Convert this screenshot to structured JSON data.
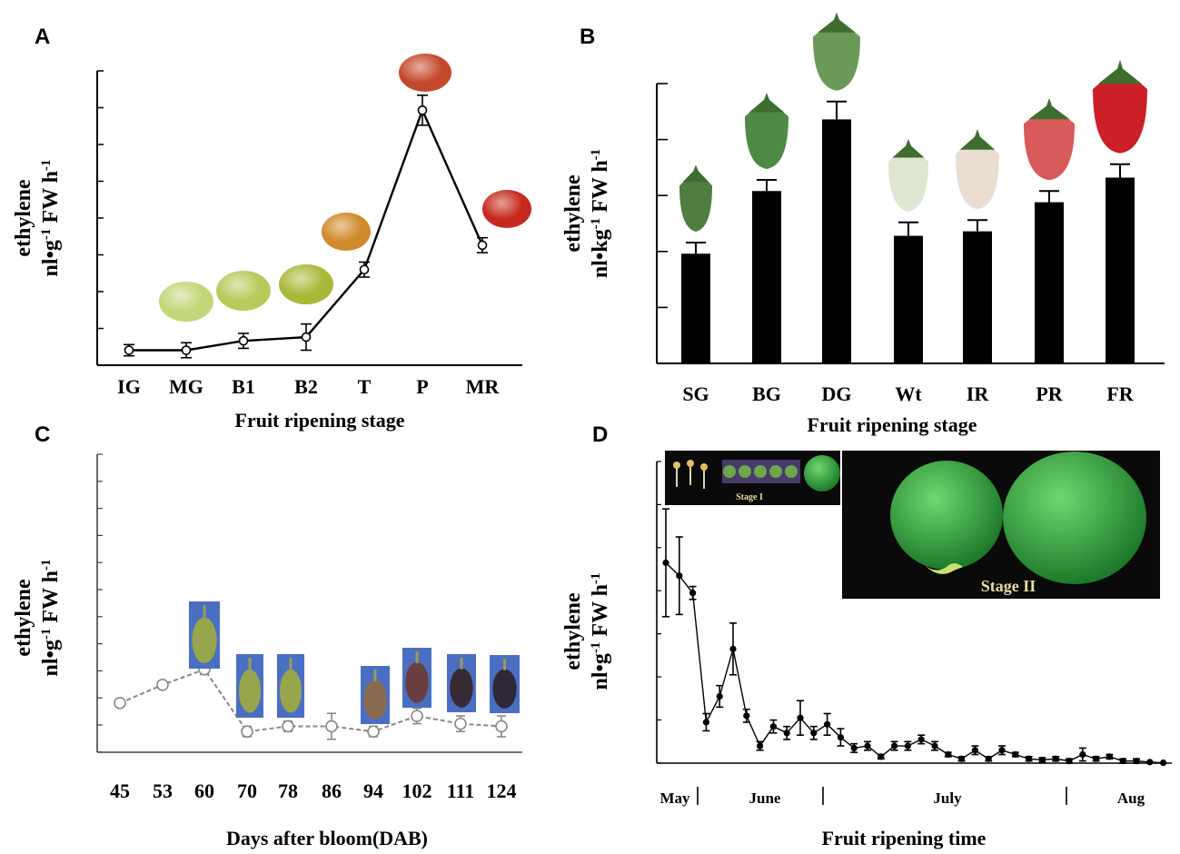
{
  "panels": {
    "A": {
      "letter": "A"
    },
    "B": {
      "letter": "B"
    },
    "C": {
      "letter": "C"
    },
    "D": {
      "letter": "D"
    }
  },
  "chart_data": [
    {
      "id": "A",
      "type": "line",
      "title": "",
      "xlabel": "Fruit ripening stage",
      "ylabel": [
        "ethylene",
        "nl•g",
        "-1",
        " FW h",
        "-1"
      ],
      "categories": [
        "IG",
        "MG",
        "B1",
        "B2",
        "T",
        "P",
        "MR"
      ],
      "values": [
        0.5,
        0.5,
        1.0,
        1.2,
        4.8,
        13.3,
        6.1
      ],
      "errors": [
        0.3,
        0.4,
        0.4,
        0.7,
        0.4,
        0.8,
        0.4
      ],
      "ylim": [
        -0.3,
        15.4
      ],
      "icons": [
        "tomato-immature-green",
        "tomato-mature-green",
        "tomato-breaker1",
        "tomato-breaker2",
        "tomato-turning",
        "tomato-pink",
        "tomato-mature-red"
      ]
    },
    {
      "id": "B",
      "type": "bar",
      "title": "",
      "xlabel": "Fruit ripening stage",
      "ylabel": [
        "ethylene",
        "nl•kg",
        "-1",
        " FW h",
        "-1"
      ],
      "categories": [
        "SG",
        "BG",
        "DG",
        "Wt",
        "IR",
        "PR",
        "FR"
      ],
      "values": [
        4.9,
        7.7,
        10.9,
        5.7,
        5.9,
        7.2,
        8.3
      ],
      "errors": [
        0.5,
        0.5,
        0.8,
        0.6,
        0.5,
        0.5,
        0.6
      ],
      "ylim": [
        0,
        12.5
      ],
      "icons": [
        "strawberry-small-green",
        "strawberry-big-green",
        "strawberry-degreening",
        "strawberry-white",
        "strawberry-initial-red",
        "strawberry-partial-red",
        "strawberry-full-red"
      ]
    },
    {
      "id": "C",
      "type": "line",
      "title": "",
      "xlabel": "Days after bloom(DAB)",
      "ylabel": [
        "ethylene",
        "nl•g",
        "-1",
        " FW h",
        "-1"
      ],
      "categories": [
        "45",
        "53",
        "60",
        "70",
        "78",
        "86",
        "94",
        "102",
        "111",
        "124"
      ],
      "values": [
        1.4,
        2.1,
        2.7,
        0.3,
        0.5,
        0.5,
        0.3,
        0.9,
        0.6,
        0.5
      ],
      "errors": [
        0.1,
        0.1,
        0.2,
        0.2,
        0.2,
        0.5,
        0.2,
        0.3,
        0.3,
        0.4
      ],
      "ylim": [
        -0.5,
        11.0
      ],
      "icons": [
        "grape-green",
        "grape-green",
        "grape-green",
        "grape-veraison",
        "grape-red",
        "grape-dark",
        "grape-ripe"
      ]
    },
    {
      "id": "D",
      "type": "line",
      "title": "",
      "xlabel": "Fruit ripening time",
      "ylabel": [
        "ethylene",
        "nl•g",
        "-1",
        " FW h",
        "-1"
      ],
      "x_months": [
        "May",
        "June",
        "July",
        "Aug"
      ],
      "x": [
        0,
        1,
        2,
        3,
        4,
        5,
        6,
        7,
        8,
        9,
        10,
        11,
        12,
        13,
        14,
        15,
        16,
        17,
        18,
        19,
        20,
        21,
        22,
        23,
        24,
        25,
        26,
        27,
        28,
        29,
        30,
        31,
        32,
        33,
        34,
        35,
        36,
        37
      ],
      "values": [
        9.3,
        8.7,
        7.9,
        1.9,
        3.1,
        5.3,
        2.2,
        0.8,
        1.7,
        1.4,
        2.1,
        1.4,
        1.8,
        1.2,
        0.7,
        0.8,
        0.3,
        0.8,
        0.8,
        1.1,
        0.8,
        0.4,
        0.2,
        0.6,
        0.2,
        0.6,
        0.4,
        0.2,
        0.15,
        0.2,
        0.1,
        0.4,
        0.2,
        0.3,
        0.1,
        0.1,
        0.05,
        0.02
      ],
      "errors": [
        2.5,
        1.8,
        0.3,
        0.4,
        0.5,
        1.2,
        0.3,
        0.2,
        0.3,
        0.3,
        0.8,
        0.3,
        0.5,
        0.4,
        0.2,
        0.2,
        0.1,
        0.2,
        0.2,
        0.2,
        0.2,
        0.1,
        0.1,
        0.2,
        0.1,
        0.2,
        0.1,
        0.1,
        0.1,
        0.1,
        0.1,
        0.3,
        0.1,
        0.1,
        0.1,
        0.1,
        0.05,
        0.02
      ],
      "ylim": [
        0,
        14
      ],
      "inset_labels": [
        "Stage I",
        "Stage II"
      ]
    }
  ],
  "colors": {
    "tomato-immature-green": "#d8e8c0",
    "tomato-mature-green": "#c3d678",
    "tomato-breaker1": "#b9c95a",
    "tomato-breaker2": "#aab83a",
    "tomato-turning": "#cf8a2a",
    "tomato-pink": "#c4492a",
    "tomato-mature-red": "#c62a1e",
    "strawberry-small-green": "#4f7d40",
    "strawberry-big-green": "#4e8a45",
    "strawberry-degreening": "#6a9a58",
    "strawberry-white": "#dfe6d2",
    "strawberry-initial-red": "#e8ddd0",
    "strawberry-partial-red": "#d85a5a",
    "strawberry-full-red": "#cc2028",
    "grape-green": "#97a64a",
    "grape-veraison": "#8a6a4e",
    "grape-red": "#6a3e3e",
    "grape-dark": "#372a34",
    "grape-ripe": "#2e2838",
    "photo-blue": "#4a6fc2",
    "citrus-green": "#3aa84a",
    "inset-bg": "#0a0a0a"
  }
}
